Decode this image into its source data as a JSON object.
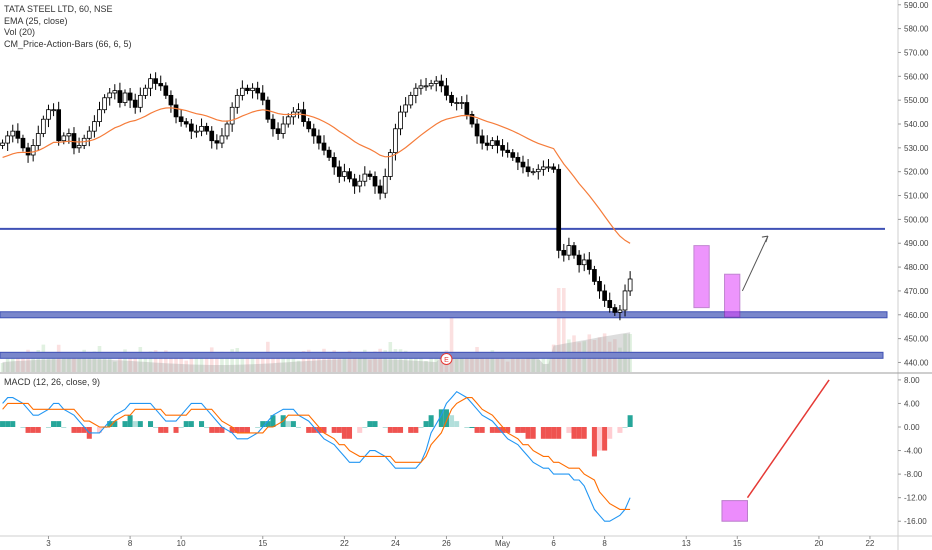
{
  "price_legend": {
    "symbol_line": "TATA STEEL LTD, 60, NSE",
    "ema_label": "EMA (25, close)",
    "vol_label": "Vol (20)",
    "pab_label": "CM_Price-Action-Bars (66, 6, 5)"
  },
  "macd_legend": {
    "label": "MACD (12, 26, close, 9)"
  },
  "earnings_marker": "E",
  "colors": {
    "up": "#000000",
    "down": "#000000",
    "ema": "#f57c3a",
    "support_band": "#3f51b5",
    "support_fill": "#7986cb",
    "highlight": "#e040fb",
    "macd_line": "#2196f3",
    "signal_line": "#ff6d00",
    "hist_up_strong": "#26a69a",
    "hist_up_weak": "#b2dfdb",
    "hist_down_strong": "#ef5350",
    "hist_down_weak": "#ffcdd2",
    "trend_arrow_red": "#e53935",
    "volume": "#b0b0b0"
  },
  "chart_data": [
    {
      "type": "candlestick",
      "title": "TATA STEEL LTD, 60, NSE",
      "y_axis_ticks": [
        "590.00",
        "580.00",
        "570.00",
        "560.00",
        "550.00",
        "540.00",
        "530.00",
        "520.00",
        "510.00",
        "500.00",
        "490.00",
        "480.00",
        "470.00",
        "460.00",
        "450.00",
        "440.00"
      ],
      "ylim": [
        436,
        592
      ],
      "x_tick_labels": [
        {
          "label": "3",
          "bar": 9
        },
        {
          "label": "8",
          "bar": 25
        },
        {
          "label": "10",
          "bar": 35
        },
        {
          "label": "15",
          "bar": 51
        },
        {
          "label": "22",
          "bar": 67
        },
        {
          "label": "24",
          "bar": 77
        },
        {
          "label": "26",
          "bar": 87
        },
        {
          "label": "May",
          "bar": 98
        },
        {
          "label": "6",
          "bar": 108
        },
        {
          "label": "8",
          "bar": 118
        },
        {
          "label": "13",
          "bar": 134
        },
        {
          "label": "15",
          "bar": 144
        },
        {
          "label": "20",
          "bar": 160
        },
        {
          "label": "22",
          "bar": 170
        }
      ],
      "total_bar_slots": 176,
      "close": [
        532,
        535,
        537,
        534,
        530,
        527,
        531,
        536,
        542,
        546,
        546,
        533,
        535,
        536,
        530,
        531,
        534,
        537,
        541,
        546,
        551,
        553,
        554,
        549,
        553,
        550,
        547,
        552,
        555,
        559,
        557,
        556,
        552,
        548,
        543,
        541,
        540,
        537,
        537,
        539,
        537,
        533,
        532,
        535,
        540,
        547,
        552,
        555,
        554,
        555,
        553,
        550,
        542,
        538,
        536,
        540,
        543,
        545,
        546,
        541,
        538,
        535,
        532,
        529,
        526,
        522,
        518,
        520,
        517,
        514,
        516,
        519,
        518,
        514,
        511,
        518,
        528,
        538,
        545,
        548,
        552,
        555,
        556,
        556,
        557,
        558,
        556,
        552,
        549,
        549,
        549,
        544,
        540,
        535,
        532,
        531,
        533,
        531,
        529,
        528,
        526,
        524,
        522,
        520,
        520,
        521,
        522,
        522,
        521,
        487,
        485,
        489,
        485,
        481,
        483,
        479,
        474,
        470,
        466,
        463,
        461,
        462,
        470,
        475
      ],
      "series": [
        {
          "name": "EMA (25, close)",
          "kind": "line"
        },
        {
          "name": "Vol (20)",
          "kind": "volume"
        }
      ],
      "horizontal_levels": [
        496,
        460,
        443
      ],
      "highlight_boxes": [
        {
          "from_bar": 136,
          "to_bar": 138,
          "low": 463,
          "high": 489
        },
        {
          "from_bar": 142,
          "to_bar": 144,
          "low": 459,
          "high": 477
        }
      ],
      "projection_arrow": {
        "from": {
          "bar": 145,
          "price": 470
        },
        "to": {
          "bar": 150,
          "price": 493
        }
      }
    },
    {
      "type": "macd",
      "title": "MACD (12, 26, close, 9)",
      "y_axis_ticks": [
        "8.00",
        "4.00",
        "0.00",
        "-4.00",
        "-8.00",
        "-12.00",
        "-16.00"
      ],
      "ylim": [
        -18,
        9
      ],
      "macd": [
        4,
        5,
        5,
        4,
        3,
        2,
        2,
        3,
        4,
        4,
        3,
        2,
        1,
        0,
        -1,
        -1,
        0,
        1,
        2,
        3,
        4,
        4,
        4,
        4,
        3,
        2,
        1,
        1,
        2,
        3,
        4,
        4,
        3,
        2,
        1,
        0,
        -1,
        -2,
        -2,
        -2,
        -1,
        0,
        1,
        2,
        3,
        3,
        3,
        2,
        1,
        0,
        -1,
        -2,
        -3,
        -4,
        -5,
        -6,
        -6,
        -5,
        -4,
        -4,
        -5,
        -6,
        -7,
        -7,
        -7,
        -7,
        -6,
        -4,
        -1,
        2,
        4,
        5,
        6,
        5,
        4,
        3,
        2,
        1,
        0,
        -1,
        -2,
        -3,
        -4,
        -5,
        -6,
        -7,
        -7,
        -8,
        -8,
        -8,
        -9,
        -9,
        -10,
        -14,
        -15,
        -16,
        -16,
        -15,
        -14,
        -12
      ],
      "signal": [
        3,
        4,
        4,
        4,
        4,
        3,
        3,
        3,
        3,
        3,
        3,
        3,
        2,
        1,
        1,
        0,
        0,
        0,
        1,
        2,
        2,
        3,
        3,
        3,
        3,
        3,
        2,
        2,
        2,
        2,
        3,
        3,
        3,
        3,
        2,
        1,
        0,
        -1,
        -1,
        -1,
        -1,
        -1,
        0,
        0,
        1,
        2,
        2,
        2,
        2,
        1,
        0,
        -1,
        -2,
        -3,
        -3,
        -4,
        -5,
        -5,
        -5,
        -5,
        -5,
        -5,
        -6,
        -6,
        -6,
        -6,
        -6,
        -5,
        -3,
        -1,
        1,
        3,
        4,
        5,
        5,
        4,
        3,
        2,
        1,
        0,
        -1,
        -2,
        -3,
        -3,
        -4,
        -5,
        -5,
        -6,
        -6,
        -7,
        -7,
        -7,
        -8,
        -9,
        -11,
        -12,
        -13,
        -14,
        -14,
        -14
      ],
      "histogram": [
        1,
        1,
        1,
        0,
        -1,
        -1,
        -1,
        0,
        1,
        1,
        0,
        -1,
        -1,
        -1,
        -2,
        -1,
        0,
        1,
        1,
        1,
        2,
        1,
        1,
        1,
        0,
        -1,
        -1,
        -1,
        0,
        1,
        1,
        1,
        0,
        -1,
        -1,
        -1,
        -1,
        -1,
        -1,
        -1,
        0,
        1,
        1,
        2,
        2,
        1,
        1,
        0,
        -1,
        -1,
        -1,
        -1,
        -1,
        -1,
        -2,
        -2,
        -1,
        0,
        1,
        1,
        0,
        -1,
        -1,
        -1,
        -1,
        -1,
        0,
        1,
        2,
        3,
        3,
        2,
        1,
        0,
        0,
        -1,
        -1,
        -1,
        -1,
        -1,
        -1,
        -1,
        -1,
        -2,
        -2,
        -2,
        -2,
        -2,
        -2,
        -1,
        -2,
        -2,
        -2,
        -5,
        -4,
        -4,
        -2,
        -1,
        0,
        2
      ],
      "highlight_boxes": [
        {
          "from_bar": 141,
          "to_bar": 145,
          "low": -16,
          "high": -12.5
        }
      ],
      "trend_arrow": {
        "from": {
          "bar": 146,
          "value": -12
        },
        "to": {
          "bar": 162,
          "value": 8
        }
      }
    }
  ]
}
